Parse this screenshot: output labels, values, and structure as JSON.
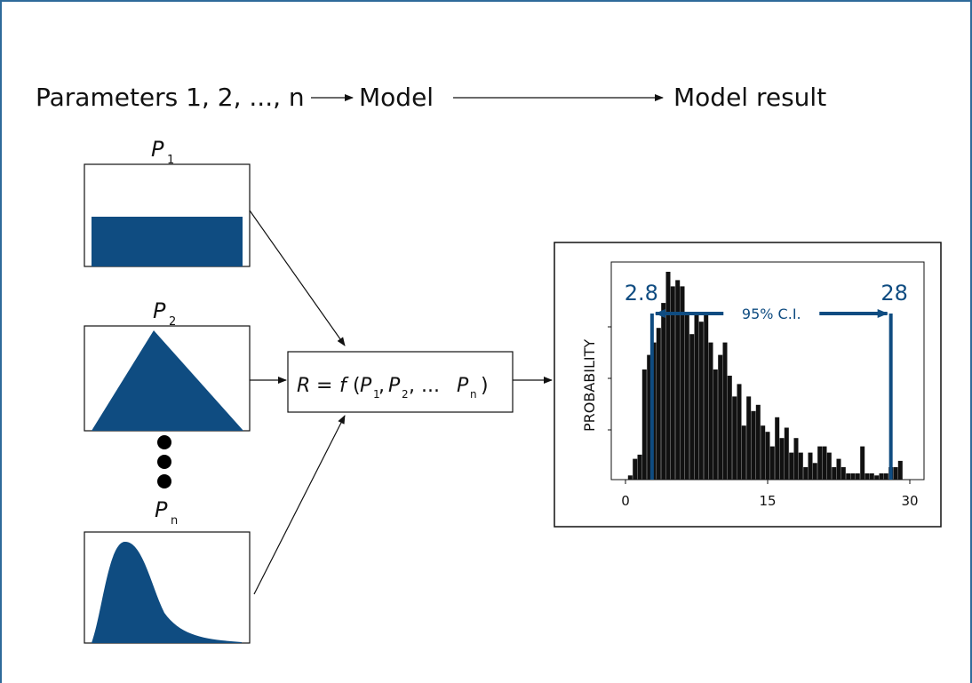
{
  "header": {
    "parameters": "Parameters 1, 2, ..., n",
    "model": "Model",
    "result": "Model result"
  },
  "inputs": [
    {
      "label": "P",
      "subscript": "1",
      "distribution": "uniform"
    },
    {
      "label": "P",
      "subscript": "2",
      "distribution": "triangular"
    },
    {
      "label": "P",
      "subscript": "n",
      "distribution": "right-skewed"
    }
  ],
  "function_box": {
    "R": "R",
    "eq": "=",
    "f": "f",
    "open": "(",
    "p1": "P",
    "p1_sub": "1",
    "sep1": ",",
    "p2": "P",
    "p2_sub": "2",
    "sep2": ", ...",
    "pn": "P",
    "pn_sub": "n",
    "close": ")"
  },
  "colors": {
    "accent": "#0f4c81",
    "frame": "#2e6a9a",
    "bars": "#111111"
  },
  "chart_data": {
    "type": "bar",
    "ylabel": "PROBABILITY",
    "xlabel": "",
    "xlim": [
      -1.5,
      31.5
    ],
    "ylim": [
      0,
      1
    ],
    "xticks": [
      "0",
      "15",
      "30"
    ],
    "ci": {
      "low": 2.8,
      "high": 28,
      "low_label": "2.8",
      "high_label": "28",
      "label": "95% C.I."
    },
    "x": [
      0.5,
      1.0,
      1.5,
      2.0,
      2.5,
      3.0,
      3.5,
      4.0,
      4.5,
      5.0,
      5.5,
      6.0,
      6.5,
      7.0,
      7.5,
      8.0,
      8.5,
      9.0,
      9.5,
      10.0,
      10.5,
      11.0,
      11.5,
      12.0,
      12.5,
      13.0,
      13.5,
      14.0,
      14.5,
      15.0,
      15.5,
      16.0,
      16.5,
      17.0,
      17.5,
      18.0,
      18.5,
      19.0,
      19.5,
      20.0,
      20.5,
      21.0,
      21.5,
      22.0,
      22.5,
      23.0,
      23.5,
      24.0,
      24.5,
      25.0,
      25.5,
      26.0,
      26.5,
      27.0,
      27.5,
      28.0,
      28.5,
      29.0
    ],
    "values": [
      0.02,
      0.1,
      0.12,
      0.53,
      0.6,
      0.66,
      0.73,
      0.85,
      1.0,
      0.93,
      0.96,
      0.93,
      0.8,
      0.7,
      0.8,
      0.76,
      0.8,
      0.66,
      0.53,
      0.6,
      0.66,
      0.5,
      0.4,
      0.46,
      0.26,
      0.4,
      0.33,
      0.36,
      0.26,
      0.23,
      0.16,
      0.3,
      0.2,
      0.25,
      0.13,
      0.2,
      0.13,
      0.06,
      0.13,
      0.08,
      0.16,
      0.16,
      0.13,
      0.06,
      0.1,
      0.06,
      0.03,
      0.03,
      0.03,
      0.16,
      0.03,
      0.03,
      0.02,
      0.03,
      0.03,
      0.06,
      0.06,
      0.09
    ]
  }
}
